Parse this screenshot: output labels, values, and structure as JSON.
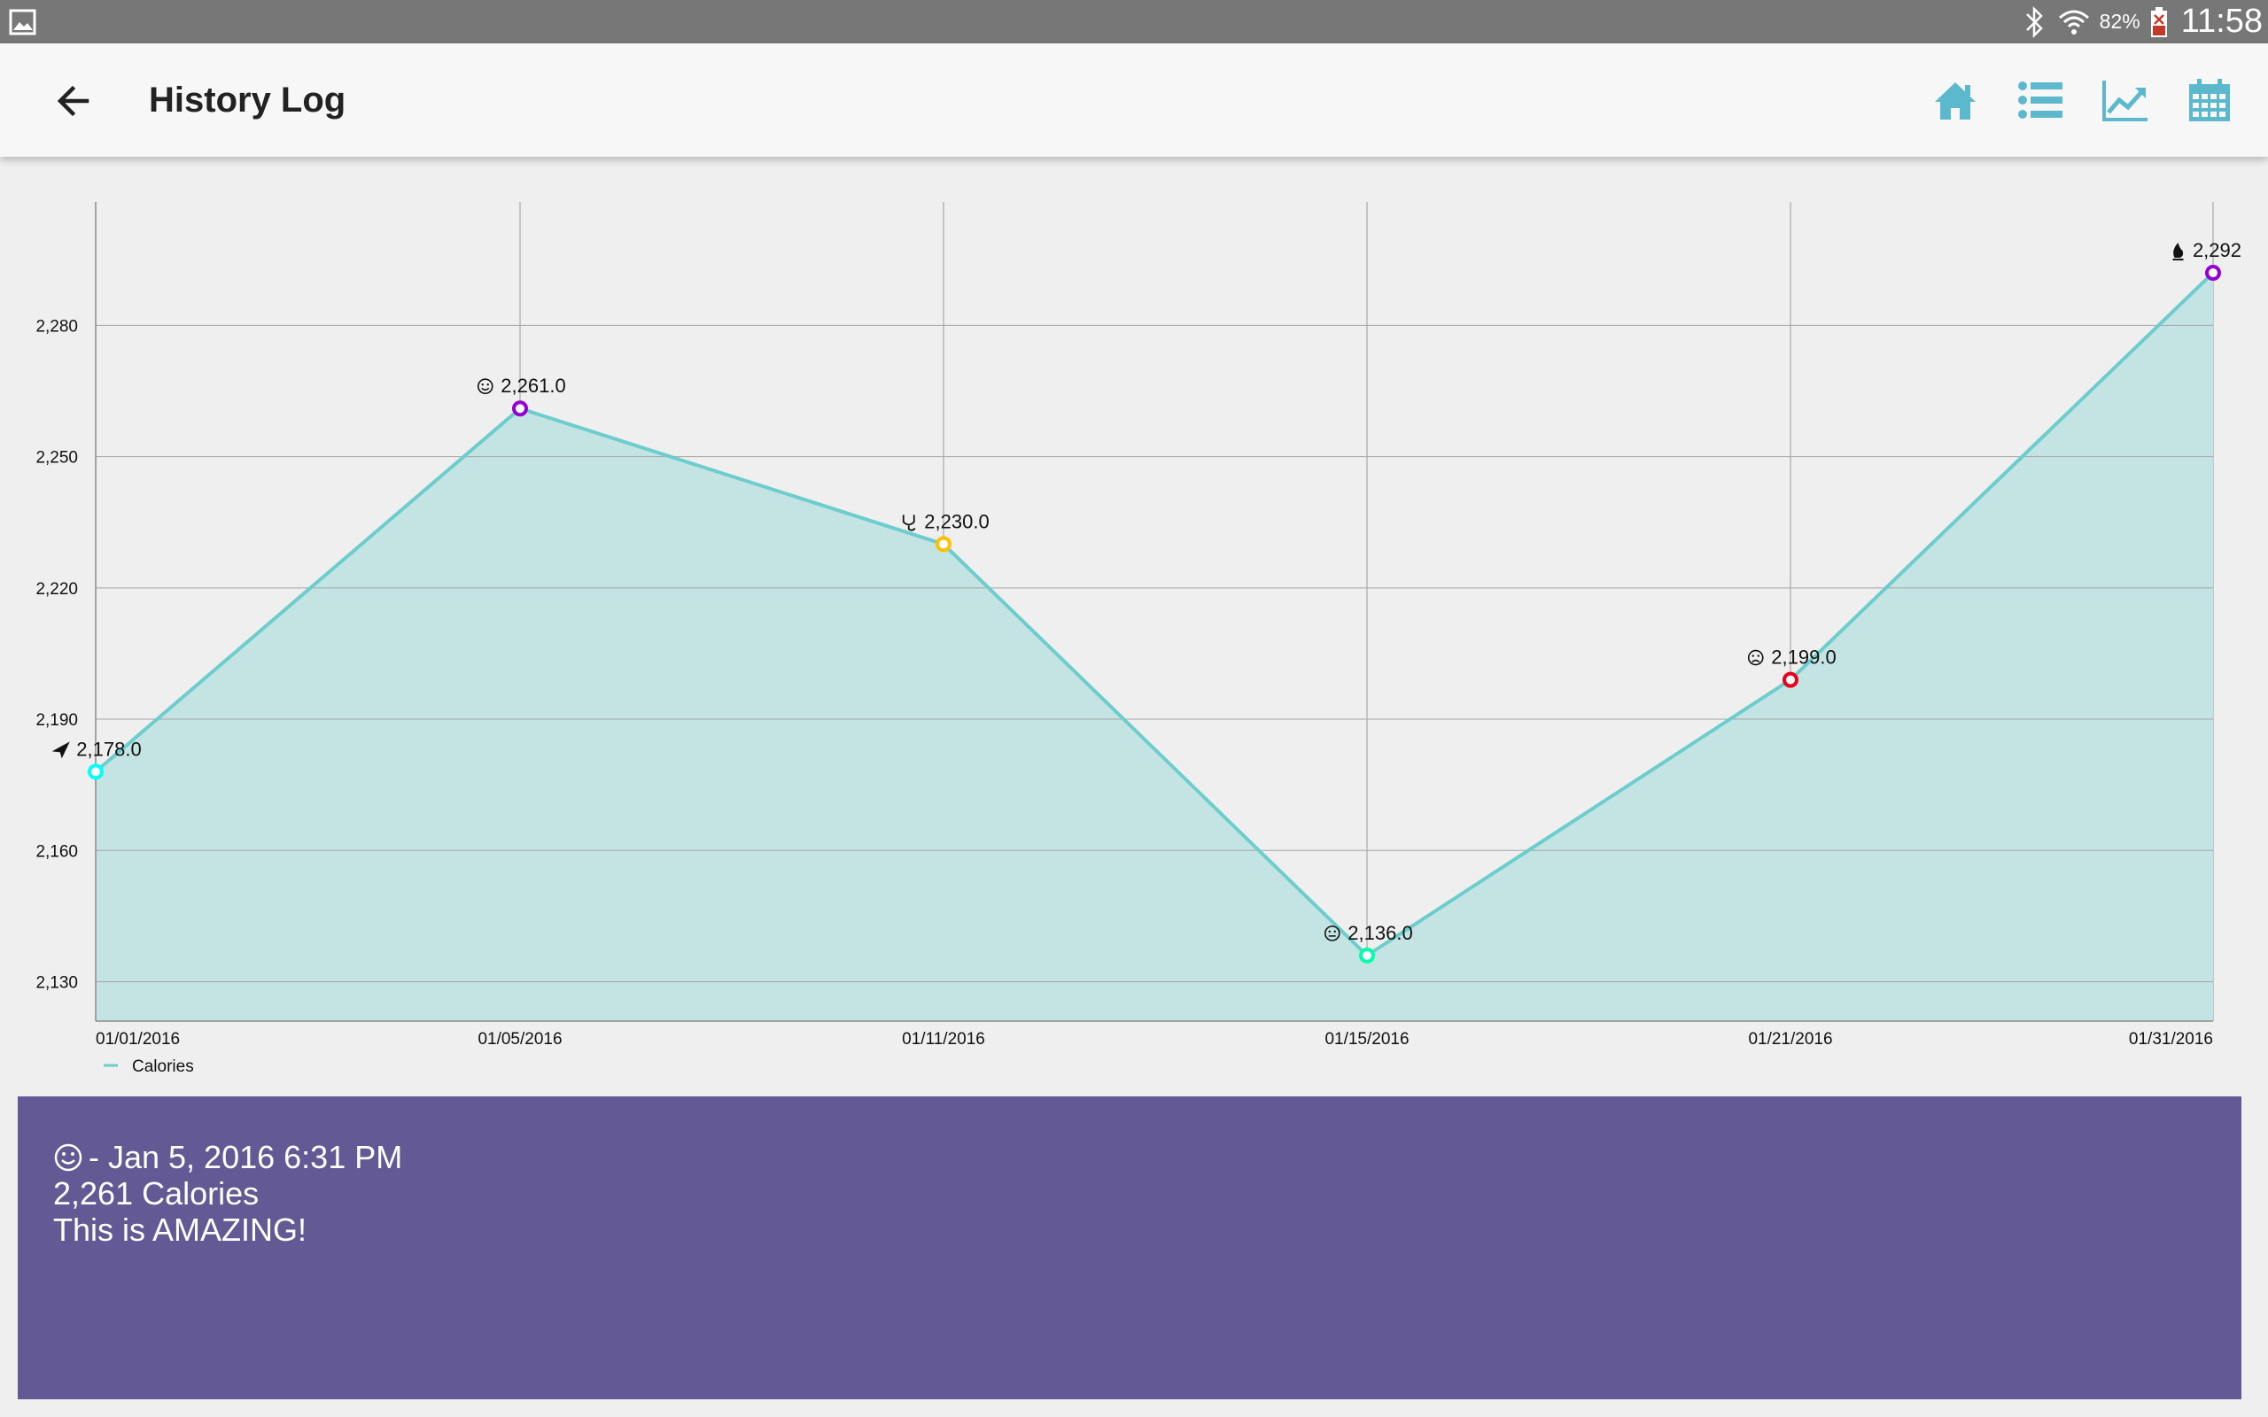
{
  "status_bar": {
    "battery_percent": "82%",
    "time": "11:58",
    "icons": [
      "gallery-icon",
      "bluetooth-icon",
      "wifi-icon",
      "battery-icon"
    ]
  },
  "app_bar": {
    "title": "History Log",
    "back_icon": "arrow-left-icon",
    "actions": [
      "home-icon",
      "list-icon",
      "trend-chart-icon",
      "calendar-icon"
    ],
    "accent_color": "#5bb8cd"
  },
  "chart_data": {
    "type": "area",
    "x": [
      "01/01/2016",
      "01/05/2016",
      "01/11/2016",
      "01/15/2016",
      "01/21/2016",
      "01/31/2016"
    ],
    "series": [
      {
        "name": "Calories",
        "values": [
          2178,
          2261,
          2230,
          2136,
          2199,
          2292
        ],
        "labels": [
          "2,178.0",
          "2,261.0",
          "2,230.0",
          "2,136.0",
          "2,199.0",
          "2,292"
        ],
        "marker_icons": [
          "paper-plane-icon",
          "smile-face-icon",
          "stethoscope-icon",
          "neutral-face-icon",
          "sad-face-icon",
          "fire-icon"
        ],
        "marker_colors": [
          "#00ffff",
          "#9400d3",
          "#ffc000",
          "#00ffaa",
          "#e8001c",
          "#9400d3"
        ],
        "line_color": "#6ccdcc",
        "fill_color": "#c4e4e4"
      }
    ],
    "yticks": [
      "2,130",
      "2,160",
      "2,190",
      "2,220",
      "2,250",
      "2,280"
    ],
    "ytick_values": [
      2130,
      2160,
      2190,
      2220,
      2250,
      2280
    ],
    "ylim": [
      2121,
      2308
    ],
    "grid": true,
    "legend": "bottom-left"
  },
  "detail": {
    "icon": "smile-face-icon",
    "date_line": "- Jan 5, 2016 6:31 PM",
    "calories_line": "2,261 Calories",
    "message_line": "This is AMAZING!",
    "background_color": "#635a95"
  }
}
